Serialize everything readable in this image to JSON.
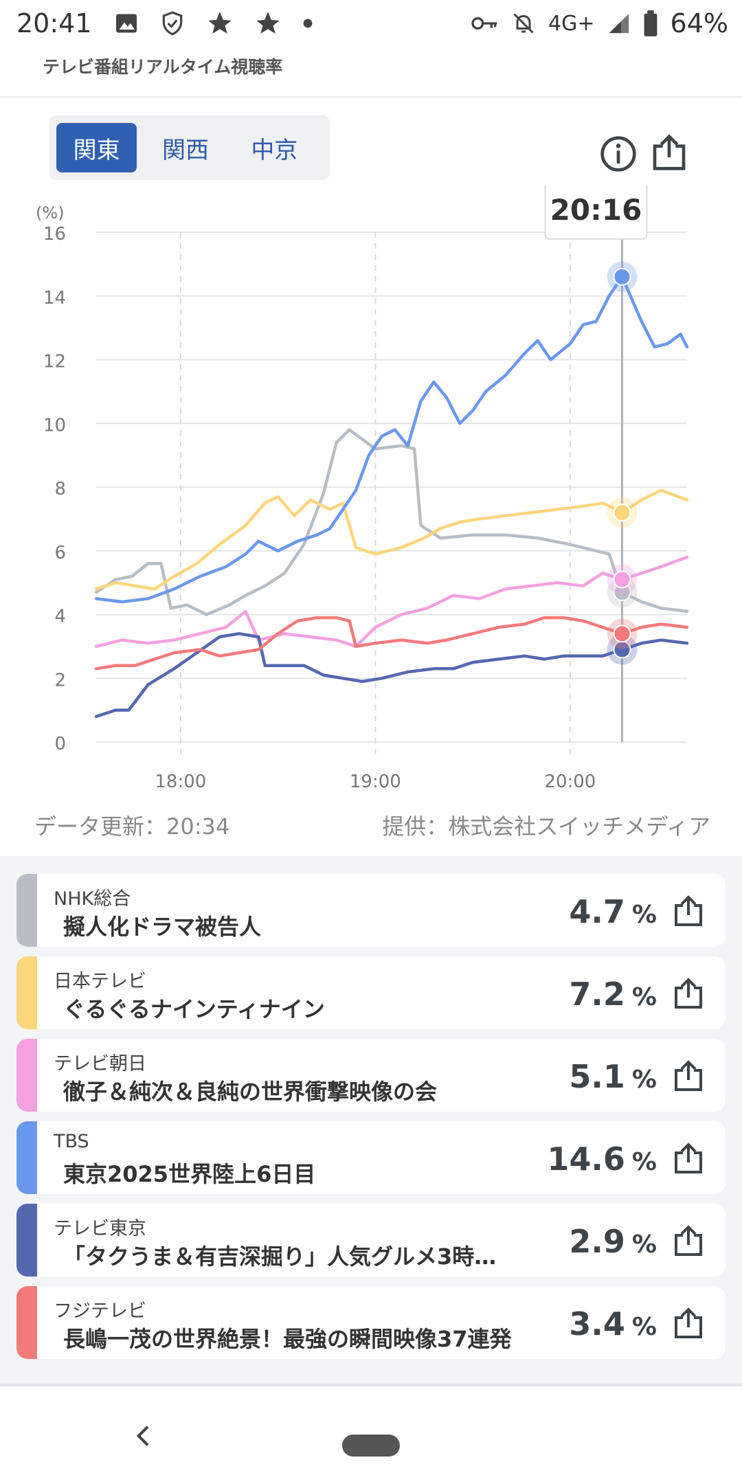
{
  "status_bar": {
    "time": "20:41",
    "network": "4G+",
    "battery": "64%",
    "icons_left": [
      "image-icon",
      "shield-check-icon",
      "star-icon",
      "star-icon",
      "dot-icon"
    ],
    "icons_right": [
      "key-icon",
      "bell-off-icon",
      "signal-icon",
      "battery-icon"
    ]
  },
  "app": {
    "title": "テレビ番組リアルタイム視聴率"
  },
  "region_tabs": [
    {
      "label": "関東",
      "active": true
    },
    {
      "label": "関西",
      "active": false
    },
    {
      "label": "中京",
      "active": false
    }
  ],
  "toolbar": {
    "info_icon": "info-icon",
    "share_icon": "share-icon"
  },
  "footer": {
    "update": "データ更新：20:34",
    "provider": "提供：株式会社スイッチメディア"
  },
  "programs": [
    {
      "channel": "NHK総合",
      "title": "擬人化ドラマ被告人",
      "rating": "4.7",
      "unit": "%",
      "color": "#b8bcc4"
    },
    {
      "channel": "日本テレビ",
      "title": "ぐるぐるナインティナイン",
      "rating": "7.2",
      "unit": "%",
      "color": "#fdd57b"
    },
    {
      "channel": "テレビ朝日",
      "title": "徹子＆純次＆良純の世界衝撃映像の会",
      "rating": "5.1",
      "unit": "%",
      "color": "#f5a0e0"
    },
    {
      "channel": "TBS",
      "title": "東京2025世界陸上6日目",
      "rating": "14.6",
      "unit": "%",
      "color": "#6a98ef"
    },
    {
      "channel": "テレビ東京",
      "title": "「タクうま＆有吉深掘り」人気グルメ3時…",
      "rating": "2.9",
      "unit": "%",
      "color": "#5468b0"
    },
    {
      "channel": "フジテレビ",
      "title": "長嶋一茂の世界絶景！最強の瞬間映像37連発",
      "rating": "3.4",
      "unit": "%",
      "color": "#f47a7a"
    }
  ],
  "chart_data": {
    "type": "line",
    "ylabel": "(%)",
    "ylim": [
      0,
      16
    ],
    "yticks": [
      "0",
      "2",
      "4",
      "6",
      "8",
      "10",
      "12",
      "14",
      "16"
    ],
    "xticks": [
      "18:00",
      "19:00",
      "20:00"
    ],
    "xrange_minutes": [
      1054,
      1236
    ],
    "cursor_label": "20:16",
    "cursor_time": 1216,
    "series": [
      {
        "color": "#b8bcc4",
        "points": [
          [
            1054,
            4.7
          ],
          [
            1060,
            5.1
          ],
          [
            1065,
            5.2
          ],
          [
            1070,
            5.6
          ],
          [
            1074,
            5.6
          ],
          [
            1077,
            4.2
          ],
          [
            1082,
            4.3
          ],
          [
            1088,
            4.0
          ],
          [
            1095,
            4.3
          ],
          [
            1100,
            4.6
          ],
          [
            1106,
            4.9
          ],
          [
            1112,
            5.3
          ],
          [
            1118,
            6.2
          ],
          [
            1124,
            7.8
          ],
          [
            1128,
            9.4
          ],
          [
            1132,
            9.8
          ],
          [
            1140,
            9.2
          ],
          [
            1148,
            9.3
          ],
          [
            1152,
            9.2
          ],
          [
            1154,
            6.8
          ],
          [
            1160,
            6.4
          ],
          [
            1170,
            6.5
          ],
          [
            1180,
            6.5
          ],
          [
            1190,
            6.4
          ],
          [
            1200,
            6.2
          ],
          [
            1208,
            6.0
          ],
          [
            1212,
            5.9
          ],
          [
            1216,
            4.7
          ],
          [
            1222,
            4.4
          ],
          [
            1228,
            4.2
          ],
          [
            1236,
            4.1
          ]
        ]
      },
      {
        "color": "#fdd57b",
        "points": [
          [
            1054,
            4.8
          ],
          [
            1060,
            5.0
          ],
          [
            1066,
            4.9
          ],
          [
            1072,
            4.8
          ],
          [
            1078,
            5.2
          ],
          [
            1085,
            5.6
          ],
          [
            1092,
            6.2
          ],
          [
            1100,
            6.8
          ],
          [
            1106,
            7.5
          ],
          [
            1110,
            7.7
          ],
          [
            1115,
            7.1
          ],
          [
            1120,
            7.6
          ],
          [
            1126,
            7.3
          ],
          [
            1130,
            7.5
          ],
          [
            1134,
            6.1
          ],
          [
            1140,
            5.9
          ],
          [
            1148,
            6.1
          ],
          [
            1155,
            6.4
          ],
          [
            1160,
            6.7
          ],
          [
            1166,
            6.9
          ],
          [
            1172,
            7.0
          ],
          [
            1180,
            7.1
          ],
          [
            1188,
            7.2
          ],
          [
            1196,
            7.3
          ],
          [
            1204,
            7.4
          ],
          [
            1210,
            7.5
          ],
          [
            1216,
            7.2
          ],
          [
            1222,
            7.6
          ],
          [
            1228,
            7.9
          ],
          [
            1236,
            7.6
          ]
        ]
      },
      {
        "color": "#f5a0e0",
        "points": [
          [
            1054,
            3.0
          ],
          [
            1062,
            3.2
          ],
          [
            1070,
            3.1
          ],
          [
            1078,
            3.2
          ],
          [
            1086,
            3.4
          ],
          [
            1094,
            3.6
          ],
          [
            1100,
            4.1
          ],
          [
            1104,
            3.2
          ],
          [
            1112,
            3.4
          ],
          [
            1120,
            3.3
          ],
          [
            1128,
            3.2
          ],
          [
            1134,
            3.0
          ],
          [
            1140,
            3.6
          ],
          [
            1148,
            4.0
          ],
          [
            1156,
            4.2
          ],
          [
            1164,
            4.6
          ],
          [
            1172,
            4.5
          ],
          [
            1180,
            4.8
          ],
          [
            1188,
            4.9
          ],
          [
            1196,
            5.0
          ],
          [
            1204,
            4.9
          ],
          [
            1210,
            5.3
          ],
          [
            1216,
            5.1
          ],
          [
            1222,
            5.3
          ],
          [
            1228,
            5.5
          ],
          [
            1236,
            5.8
          ]
        ]
      },
      {
        "color": "#6a98ef",
        "points": [
          [
            1054,
            4.5
          ],
          [
            1062,
            4.4
          ],
          [
            1070,
            4.5
          ],
          [
            1078,
            4.8
          ],
          [
            1086,
            5.2
          ],
          [
            1094,
            5.5
          ],
          [
            1100,
            5.9
          ],
          [
            1104,
            6.3
          ],
          [
            1110,
            6.0
          ],
          [
            1116,
            6.3
          ],
          [
            1122,
            6.5
          ],
          [
            1126,
            6.7
          ],
          [
            1130,
            7.3
          ],
          [
            1134,
            7.9
          ],
          [
            1138,
            9.0
          ],
          [
            1142,
            9.6
          ],
          [
            1146,
            9.8
          ],
          [
            1150,
            9.3
          ],
          [
            1154,
            10.7
          ],
          [
            1158,
            11.3
          ],
          [
            1162,
            10.8
          ],
          [
            1166,
            10.0
          ],
          [
            1170,
            10.4
          ],
          [
            1174,
            11.0
          ],
          [
            1180,
            11.5
          ],
          [
            1186,
            12.2
          ],
          [
            1190,
            12.6
          ],
          [
            1194,
            12.0
          ],
          [
            1200,
            12.5
          ],
          [
            1204,
            13.1
          ],
          [
            1208,
            13.2
          ],
          [
            1212,
            14.0
          ],
          [
            1216,
            14.6
          ],
          [
            1222,
            13.2
          ],
          [
            1226,
            12.4
          ],
          [
            1230,
            12.5
          ],
          [
            1234,
            12.8
          ],
          [
            1236,
            12.4
          ]
        ]
      },
      {
        "color": "#5468b0",
        "points": [
          [
            1054,
            0.8
          ],
          [
            1060,
            1.0
          ],
          [
            1064,
            1.0
          ],
          [
            1070,
            1.8
          ],
          [
            1078,
            2.3
          ],
          [
            1085,
            2.8
          ],
          [
            1092,
            3.3
          ],
          [
            1098,
            3.4
          ],
          [
            1104,
            3.3
          ],
          [
            1106,
            2.4
          ],
          [
            1112,
            2.4
          ],
          [
            1118,
            2.4
          ],
          [
            1124,
            2.1
          ],
          [
            1130,
            2.0
          ],
          [
            1136,
            1.9
          ],
          [
            1142,
            2.0
          ],
          [
            1150,
            2.2
          ],
          [
            1158,
            2.3
          ],
          [
            1164,
            2.3
          ],
          [
            1170,
            2.5
          ],
          [
            1178,
            2.6
          ],
          [
            1186,
            2.7
          ],
          [
            1192,
            2.6
          ],
          [
            1198,
            2.7
          ],
          [
            1204,
            2.7
          ],
          [
            1210,
            2.7
          ],
          [
            1216,
            2.9
          ],
          [
            1222,
            3.1
          ],
          [
            1228,
            3.2
          ],
          [
            1236,
            3.1
          ]
        ]
      },
      {
        "color": "#f47a7a",
        "points": [
          [
            1054,
            2.3
          ],
          [
            1060,
            2.4
          ],
          [
            1066,
            2.4
          ],
          [
            1072,
            2.6
          ],
          [
            1078,
            2.8
          ],
          [
            1086,
            2.9
          ],
          [
            1092,
            2.7
          ],
          [
            1098,
            2.8
          ],
          [
            1104,
            2.9
          ],
          [
            1110,
            3.4
          ],
          [
            1116,
            3.8
          ],
          [
            1122,
            3.9
          ],
          [
            1128,
            3.9
          ],
          [
            1132,
            3.8
          ],
          [
            1134,
            3.0
          ],
          [
            1140,
            3.1
          ],
          [
            1148,
            3.2
          ],
          [
            1156,
            3.1
          ],
          [
            1162,
            3.2
          ],
          [
            1170,
            3.4
          ],
          [
            1178,
            3.6
          ],
          [
            1186,
            3.7
          ],
          [
            1192,
            3.9
          ],
          [
            1198,
            3.9
          ],
          [
            1204,
            3.8
          ],
          [
            1210,
            3.6
          ],
          [
            1216,
            3.4
          ],
          [
            1222,
            3.6
          ],
          [
            1228,
            3.7
          ],
          [
            1236,
            3.6
          ]
        ]
      }
    ]
  }
}
